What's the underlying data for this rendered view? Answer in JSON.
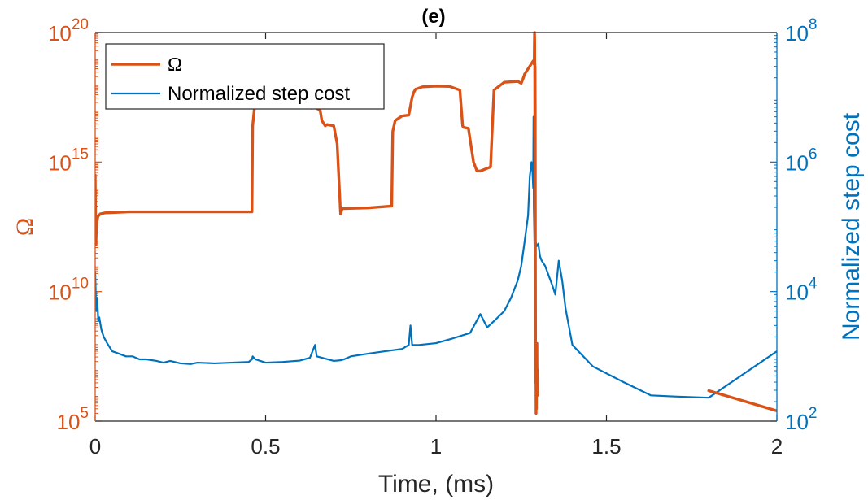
{
  "chart_data": {
    "type": "line",
    "title": "(e)",
    "xlabel": "Time, (ms)",
    "xlim": [
      0,
      2
    ],
    "xticks": [
      0,
      0.5,
      1,
      1.5,
      2
    ],
    "xtick_labels": [
      "0",
      "0.5",
      "1",
      "1.5",
      "2"
    ],
    "left_axis": {
      "label": "Ω",
      "scale": "log",
      "ylim": [
        100000,
        100000000000000000000
      ],
      "ticks": [
        {
          "value": 100000,
          "base": "10",
          "exp": "5"
        },
        {
          "value": 10000000000,
          "base": "10",
          "exp": "10"
        },
        {
          "value": 1000000000000000,
          "base": "10",
          "exp": "15"
        },
        {
          "value": 100000000000000000000,
          "base": "10",
          "exp": "20"
        }
      ],
      "color": "#D95319"
    },
    "right_axis": {
      "label": "Normalized step cost",
      "scale": "log",
      "ylim": [
        100,
        100000000
      ],
      "ticks": [
        {
          "value": 100,
          "base": "10",
          "exp": "2"
        },
        {
          "value": 10000,
          "base": "10",
          "exp": "4"
        },
        {
          "value": 1000000,
          "base": "10",
          "exp": "6"
        },
        {
          "value": 100000000,
          "base": "10",
          "exp": "8"
        }
      ],
      "color": "#0072BD"
    },
    "legend": {
      "position": "top-left",
      "entries": [
        {
          "label": "Ω",
          "series": "omega"
        },
        {
          "label": "Normalized step cost",
          "series": "cost"
        }
      ]
    },
    "series": [
      {
        "name": "Ω",
        "id": "omega",
        "axis": "left",
        "color": "#D95319",
        "segments": [
          {
            "x": [
              0,
              0.002,
              0.004,
              0.008,
              0.015,
              0.03,
              0.1,
              0.2,
              0.3,
              0.4,
              0.46,
              0.462,
              0.47,
              0.48,
              0.5,
              0.55,
              0.6,
              0.62,
              0.635,
              0.64,
              0.66,
              0.665,
              0.675,
              0.68,
              0.7,
              0.71,
              0.72,
              0.725,
              0.8,
              0.87,
              0.873,
              0.88,
              0.9,
              0.92,
              0.93,
              0.935,
              0.94,
              0.96,
              1.0,
              1.04,
              1.07,
              1.078,
              1.08,
              1.095,
              1.11,
              1.12,
              1.13,
              1.16,
              1.165,
              1.17,
              1.2,
              1.24,
              1.25,
              1.255,
              1.26,
              1.275,
              1.285,
              1.29
            ],
            "y": [
              316000000000000.0,
              630000000000.0,
              4000000000000.0,
              8000000000000.0,
              10000000000000.0,
              11000000000000.0,
              12000000000000.0,
              12000000000000.0,
              12000000000000.0,
              12000000000000.0,
              12000000000000.0,
              2.5e+16,
              2.8e+17,
              3.2e+17,
              3.6e+17,
              3.9e+17,
              3.6e+17,
              2.5e+17,
              1.2e+17,
              1.4e+17,
              1e+17,
              4e+16,
              2.5e+16,
              2.8e+16,
              2.5e+16,
              5000000000000000.0,
              10000000000000.0,
              16000000000000.0,
              17000000000000.0,
              20000000000000.0,
              1.5e+16,
              4e+16,
              6e+16,
              6.5e+16,
              3.2e+17,
              5e+17,
              6.5e+17,
              8e+17,
              8.5e+17,
              8.3e+17,
              6e+17,
              2.5e+16,
              2.2e+16,
              2e+16,
              1000000000000000.0,
              450000000000000.0,
              450000000000000.0,
              650000000000000.0,
              2e+16,
              6e+17,
              1.2e+18,
              1.3e+18,
              1.1e+18,
              1.6e+18,
              2.5e+18,
              5e+18,
              8e+18,
              6e+18
            ]
          },
          {
            "x": [
              1.288,
              1.2885,
              1.289,
              1.2895,
              1.29,
              1.2905,
              1.291,
              1.2915,
              1.292,
              1.2925,
              1.293,
              1.2935,
              1.294,
              1.2945,
              1.295,
              1.2955,
              1.296,
              1.2965,
              1.297,
              1.2975,
              1.298,
              1.2985
            ],
            "y": [
              6e+18,
              3e+19,
              1e+20,
              4e+19,
              1e+16,
              5e+18,
              1e+17,
              200000000000.0,
              100000000.0,
              3000000.0,
              10000000.0,
              200000.0,
              5000000.0,
              300000.0,
              10000000.0,
              1000000.0,
              100000000.0,
              2000000.0,
              10000000.0,
              5000000.0,
              2000000.0,
              1000000.0
            ]
          },
          {
            "x": [
              1.8,
              2.0
            ],
            "y": [
              1500000.0,
              250000.0
            ]
          }
        ]
      },
      {
        "name": "Normalized step cost",
        "id": "cost",
        "axis": "right",
        "color": "#0072BD",
        "segments": [
          {
            "x": [
              0,
              0.003,
              0.006,
              0.009,
              0.012,
              0.018,
              0.025,
              0.035,
              0.05,
              0.07,
              0.09,
              0.11,
              0.13,
              0.15,
              0.18,
              0.2,
              0.22,
              0.25,
              0.28,
              0.3,
              0.35,
              0.4,
              0.45,
              0.46,
              0.462,
              0.47,
              0.5,
              0.55,
              0.6,
              0.63,
              0.645,
              0.65,
              0.7,
              0.72,
              0.73,
              0.75,
              0.8,
              0.85,
              0.9,
              0.92,
              0.925,
              0.93,
              0.95,
              1.0,
              1.05,
              1.1,
              1.13,
              1.15,
              1.17,
              1.2,
              1.22,
              1.24,
              1.25,
              1.26,
              1.27,
              1.275,
              1.28,
              1.283,
              1.285,
              1.286,
              1.287,
              1.288,
              1.289,
              1.29,
              1.292,
              1.295,
              1.3,
              1.305,
              1.31,
              1.32,
              1.33,
              1.34,
              1.35,
              1.36,
              1.37,
              1.38,
              1.4,
              1.46,
              1.55,
              1.63,
              1.7,
              1.8,
              1.8,
              2.0
            ],
            "y": [
              20000,
              5000,
              8000,
              3500,
              4000,
              2600,
              2000,
              1600,
              1200,
              1100,
              1000,
              1000,
              900,
              900,
              850,
              800,
              850,
              780,
              760,
              800,
              780,
              800,
              820,
              900,
              1000,
              900,
              800,
              820,
              860,
              950,
              1500,
              1000,
              850,
              870,
              900,
              1000,
              1100,
              1200,
              1300,
              1500,
              3000,
              1500,
              1500,
              1600,
              1900,
              2300,
              4500,
              2800,
              3500,
              5000,
              8000,
              15000,
              25000,
              60000,
              150000,
              600000,
              1000000,
              700000,
              400000,
              5000000,
              200000,
              100000,
              50000,
              60000,
              60000,
              50000,
              55000,
              35000,
              30000,
              25000,
              18000,
              13000,
              9000,
              30000,
              15000,
              5500,
              1500,
              700,
              400,
              250,
              240,
              230,
              230,
              1200
            ]
          }
        ]
      }
    ]
  }
}
